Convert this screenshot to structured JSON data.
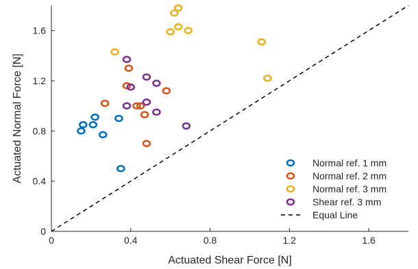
{
  "chart_data": {
    "type": "scatter",
    "title": "",
    "xlabel": "Actuated Shear Force [N]",
    "ylabel": "Actuated Normal Force [N]",
    "xlim": [
      0,
      1.8
    ],
    "ylim": [
      0,
      1.8
    ],
    "xticks": [
      0,
      0.4,
      0.8,
      1.2,
      1.6
    ],
    "yticks": [
      0,
      0.4,
      0.8,
      1.2,
      1.6
    ],
    "xtick_labels": [
      "0",
      "0.4",
      "0.8",
      "1.2",
      "1.6"
    ],
    "ytick_labels": [
      "0",
      "0.4",
      "0.8",
      "1.2",
      "1.6"
    ],
    "grid": false,
    "legend_position": "bottom-right",
    "series": [
      {
        "name": "Normal ref. 1 mm",
        "color": "#0072BD",
        "marker": "ring",
        "points": [
          {
            "x": 0.15,
            "y": 0.8
          },
          {
            "x": 0.16,
            "y": 0.85
          },
          {
            "x": 0.21,
            "y": 0.85
          },
          {
            "x": 0.22,
            "y": 0.91
          },
          {
            "x": 0.26,
            "y": 0.77
          },
          {
            "x": 0.34,
            "y": 0.9
          },
          {
            "x": 0.35,
            "y": 0.5
          }
        ]
      },
      {
        "name": "Normal ref. 2 mm",
        "color": "#D95319",
        "marker": "ring",
        "points": [
          {
            "x": 0.27,
            "y": 1.02
          },
          {
            "x": 0.38,
            "y": 1.16
          },
          {
            "x": 0.39,
            "y": 1.3
          },
          {
            "x": 0.43,
            "y": 1.0
          },
          {
            "x": 0.45,
            "y": 1.0
          },
          {
            "x": 0.47,
            "y": 0.93
          },
          {
            "x": 0.48,
            "y": 0.7
          },
          {
            "x": 0.58,
            "y": 1.12
          }
        ]
      },
      {
        "name": "Normal ref. 3 mm",
        "color": "#EDB120",
        "marker": "ring",
        "points": [
          {
            "x": 0.32,
            "y": 1.43
          },
          {
            "x": 0.6,
            "y": 1.59
          },
          {
            "x": 0.62,
            "y": 1.74
          },
          {
            "x": 0.64,
            "y": 1.78
          },
          {
            "x": 0.64,
            "y": 1.63
          },
          {
            "x": 0.69,
            "y": 1.6
          },
          {
            "x": 1.06,
            "y": 1.51
          },
          {
            "x": 1.09,
            "y": 1.22
          }
        ]
      },
      {
        "name": "Shear ref. 3 mm",
        "color": "#7E2F8E",
        "marker": "ring",
        "points": [
          {
            "x": 0.38,
            "y": 1.37
          },
          {
            "x": 0.38,
            "y": 1.0
          },
          {
            "x": 0.4,
            "y": 1.15
          },
          {
            "x": 0.48,
            "y": 1.23
          },
          {
            "x": 0.48,
            "y": 1.03
          },
          {
            "x": 0.53,
            "y": 1.18
          },
          {
            "x": 0.53,
            "y": 0.95
          },
          {
            "x": 0.68,
            "y": 0.84
          }
        ]
      }
    ],
    "reference_line": {
      "name": "Equal Line",
      "color": "#000000",
      "style": "dashed",
      "points": [
        [
          0,
          0
        ],
        [
          1.8,
          1.8
        ]
      ]
    }
  }
}
